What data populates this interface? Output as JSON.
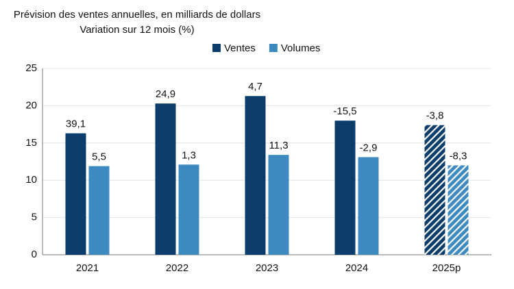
{
  "chart_data": {
    "type": "bar",
    "title": "Prévision des ventes annuelles, en milliards de dollars",
    "subtitle": "Variation sur 12 mois (%)",
    "categories": [
      "2021",
      "2022",
      "2023",
      "2024",
      "2025p"
    ],
    "hatched": [
      false,
      false,
      false,
      false,
      true
    ],
    "series": [
      {
        "name": "Ventes",
        "color": "#0b3d6b",
        "values": [
          16.3,
          20.3,
          21.3,
          18.0,
          17.4
        ],
        "annotations": [
          "39,1",
          "24,9",
          "4,7",
          "-15,5",
          "-3,8"
        ]
      },
      {
        "name": "Volumes",
        "color": "#3d8ac0",
        "values": [
          11.9,
          12.1,
          13.4,
          13.1,
          12.0
        ],
        "annotations": [
          "5,5",
          "1,3",
          "11,3",
          "-2,9",
          "-8,3"
        ]
      }
    ],
    "ylim": [
      0,
      25
    ],
    "yticks": [
      0,
      5,
      10,
      15,
      20,
      25
    ],
    "grid": true,
    "legend": "top"
  }
}
